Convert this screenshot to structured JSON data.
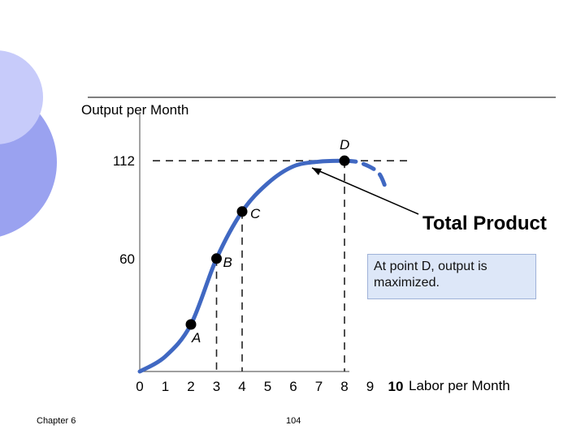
{
  "colors": {
    "curve": "#4068c2",
    "deco_outer": "#9aa2f0",
    "deco_inner": "#c7cbfa",
    "callout_bg": "#dde7f8"
  },
  "footer": {
    "left": "Chapter 6",
    "page": "104"
  },
  "callout": {
    "text": "At point D, output is maximized."
  },
  "chart_data": {
    "type": "line",
    "ylabel": "Output per Month",
    "xlabel": "Labor per Month",
    "x_ticks": [
      "0",
      "1",
      "2",
      "3",
      "4",
      "5",
      "6",
      "7",
      "8",
      "9",
      "10"
    ],
    "y_ticks": [
      {
        "label": "60",
        "value": 60
      },
      {
        "label": "112",
        "value": 112
      }
    ],
    "xlim": [
      0,
      10
    ],
    "ylim": [
      0,
      135
    ],
    "series": [
      {
        "name": "Total Product",
        "x": [
          0,
          1,
          2,
          3,
          4,
          5,
          6,
          7,
          8
        ],
        "y": [
          0,
          8,
          25,
          60,
          85,
          100,
          109,
          111.5,
          112
        ],
        "style": "solid"
      },
      {
        "name": "",
        "x": [
          8,
          8.6,
          9.3,
          9.6
        ],
        "y": [
          112,
          111,
          106,
          98
        ],
        "style": "dashed"
      }
    ],
    "points": [
      {
        "label": "A",
        "x": 2,
        "y": 25
      },
      {
        "label": "B",
        "x": 3,
        "y": 60
      },
      {
        "label": "C",
        "x": 4,
        "y": 85
      },
      {
        "label": "D",
        "x": 8,
        "y": 112
      }
    ],
    "grid": false
  }
}
